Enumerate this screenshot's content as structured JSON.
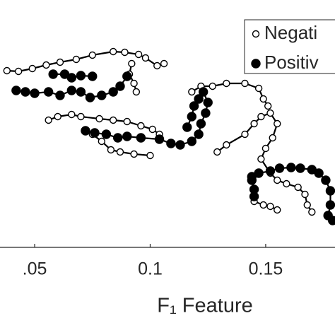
{
  "chart_data": {
    "type": "line-scatter",
    "xlabel": "F₁ Feature",
    "xlim": [
      0.035,
      0.18
    ],
    "xticks": [
      {
        "value": 0.05,
        "label": ".05"
      },
      0.1,
      0.15
    ],
    "ylim": [
      0,
      350
    ],
    "legend": "upper right",
    "series": [
      {
        "name": "Negati",
        "color": "#000000",
        "marker": "open",
        "x": [
          0.038,
          0.043,
          0.049,
          0.055,
          0.061,
          0.068,
          0.075,
          0.084,
          0.089,
          0.095,
          0.098,
          0.103,
          0.106,
          null,
          0.092,
          0.091,
          0.093,
          0.094,
          null,
          0.056,
          0.06,
          0.066,
          0.07,
          0.078,
          0.084,
          0.09,
          0.096,
          0.101,
          0.104,
          null,
          0.075,
          0.079,
          0.083,
          0.087,
          0.093,
          0.1,
          null,
          0.129,
          0.133,
          0.141,
          0.145,
          0.148,
          0.152,
          0.155,
          0.153,
          0.15,
          0.148,
          0.152,
          0.155,
          0.159,
          0.164,
          0.167,
          0.168,
          0.17,
          null,
          0.118,
          0.122,
          0.127,
          0.133,
          0.141,
          0.147,
          0.149,
          0.151,
          null,
          0.145,
          0.149,
          0.152,
          0.155
        ],
        "values": [
          250,
          249,
          253,
          258,
          262,
          266,
          272,
          277,
          276,
          273,
          268,
          257,
          260,
          null,
          260,
          245,
          232,
          220,
          null,
          180,
          185,
          188,
          185,
          182,
          180,
          178,
          172,
          167,
          160,
          null,
          160,
          150,
          138,
          135,
          132,
          130,
          null,
          135,
          145,
          160,
          175,
          185,
          190,
          175,
          155,
          140,
          125,
          105,
          95,
          90,
          85,
          75,
          60,
          50,
          null,
          220,
          228,
          228,
          232,
          232,
          225,
          210,
          200,
          null,
          65,
          60,
          58,
          53
        ]
      },
      {
        "name": "Positiv",
        "color": "#000000",
        "marker": "filled",
        "x": [
          0.042,
          0.046,
          0.05,
          0.056,
          0.061,
          0.066,
          0.07,
          0.074,
          0.079,
          0.084,
          0.087,
          0.09,
          null,
          0.058,
          0.063,
          0.066,
          0.07,
          0.075,
          null,
          0.072,
          0.076,
          0.081,
          0.086,
          0.09,
          0.096,
          0.104,
          0.109,
          0.113,
          0.118,
          0.121,
          0.122,
          0.124,
          0.125,
          0.123,
          0.121,
          0.119,
          0.118,
          0.116,
          null,
          0.144,
          0.147,
          0.152,
          0.156,
          0.161,
          0.165,
          0.17,
          0.173,
          0.176,
          0.178,
          0.178,
          0.177,
          0.179,
          null,
          0.144,
          0.145,
          0.145
        ],
        "values": [
          222,
          220,
          218,
          220,
          215,
          222,
          220,
          212,
          215,
          220,
          228,
          242,
          null,
          245,
          245,
          240,
          243,
          242,
          null,
          165,
          162,
          160,
          155,
          157,
          155,
          153,
          147,
          145,
          150,
          160,
          175,
          190,
          205,
          220,
          210,
          200,
          185,
          170,
          null,
          100,
          105,
          108,
          112,
          113,
          112,
          110,
          105,
          95,
          80,
          60,
          45,
          38,
          null,
          95,
          82,
          72
        ]
      }
    ]
  }
}
